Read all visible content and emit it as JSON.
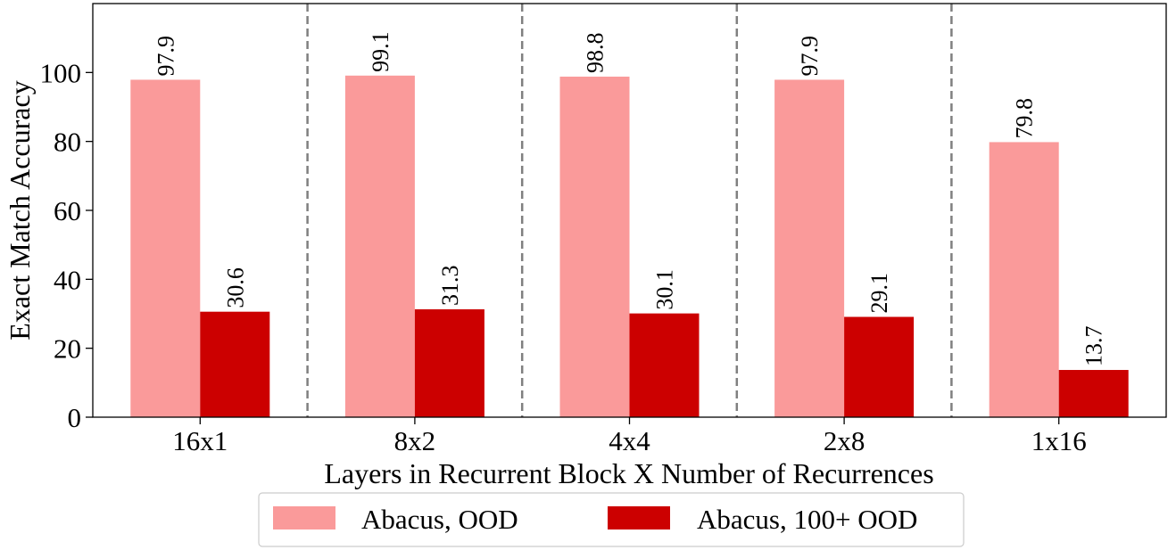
{
  "chart_data": {
    "type": "bar",
    "title": "",
    "xlabel": "Layers in Recurrent Block X Number of Recurrences",
    "ylabel": "Exact Match Accuracy",
    "categories": [
      "16x1",
      "8x2",
      "4x4",
      "2x8",
      "1x16"
    ],
    "series": [
      {
        "name": "Abacus, OOD",
        "values": [
          97.9,
          99.1,
          98.8,
          97.9,
          79.8
        ],
        "labels": [
          "97.9",
          "99.1",
          "98.8",
          "97.9",
          "79.8"
        ],
        "color": "#fa9a9a"
      },
      {
        "name": "Abacus, 100+ OOD",
        "values": [
          30.6,
          31.3,
          30.1,
          29.1,
          13.7
        ],
        "labels": [
          "30.6",
          "31.3",
          "30.1",
          "29.1",
          "13.7"
        ],
        "color": "#cc0000"
      }
    ],
    "ylim": [
      0,
      120
    ],
    "yticks": [
      "0",
      "20",
      "40",
      "60",
      "80",
      "100"
    ],
    "grid": false,
    "category_separators": "dashed-vertical",
    "legend_position": "bottom-center"
  }
}
